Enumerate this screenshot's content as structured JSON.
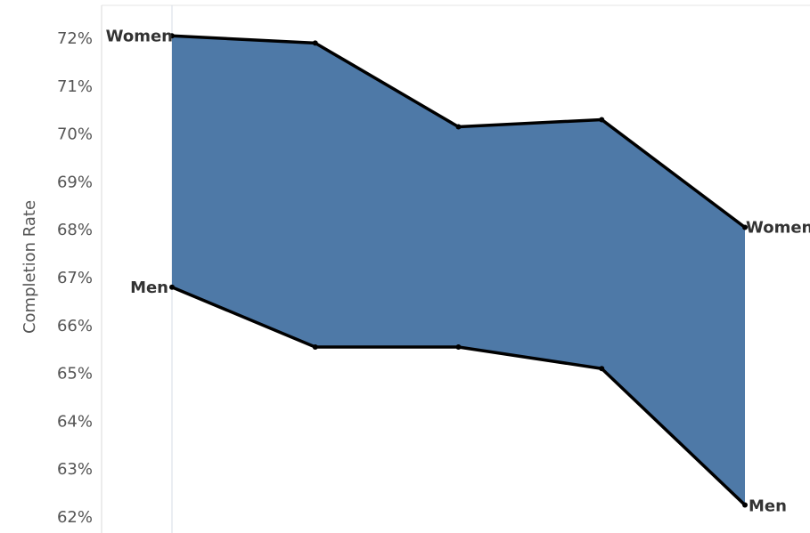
{
  "chart_data": {
    "type": "area",
    "title": "",
    "xlabel": "",
    "ylabel": "Completion Rate",
    "x": [
      1,
      2,
      3,
      4,
      5
    ],
    "ylim": [
      61.8,
      72.3
    ],
    "yticks": [
      "62%",
      "63%",
      "64%",
      "65%",
      "66%",
      "67%",
      "68%",
      "69%",
      "70%",
      "71%",
      "72%"
    ],
    "fill_color": "#4e79a7",
    "line_color": "#000000",
    "grid": false,
    "series": [
      {
        "name": "Women",
        "values": [
          72.05,
          71.9,
          70.15,
          70.3,
          68.05
        ],
        "start_label": "Women",
        "end_label": "Women"
      },
      {
        "name": "Men",
        "values": [
          66.8,
          65.55,
          65.55,
          65.1,
          62.25
        ],
        "start_label": "Men",
        "end_label": "Men"
      }
    ]
  }
}
